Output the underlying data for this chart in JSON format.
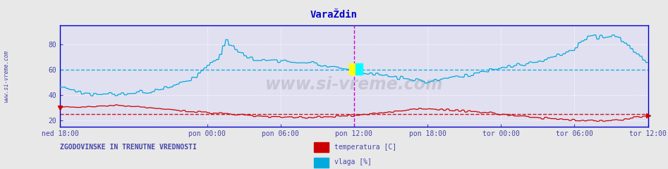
{
  "title": "VaraŽdin",
  "title_color": "#0000cc",
  "bg_color": "#e8e8e8",
  "plot_bg_color": "#e0e0f0",
  "xlabel_color": "#4444aa",
  "grid_color": "#ffffff",
  "x_ticks": [
    "ned 18:00",
    "pon 00:00",
    "pon 06:00",
    "pon 12:00",
    "pon 18:00",
    "tor 00:00",
    "tor 06:00",
    "tor 12:00"
  ],
  "x_tick_positions": [
    0.0,
    0.25,
    0.375,
    0.5,
    0.625,
    0.75,
    0.875,
    1.0
  ],
  "ylim": [
    15,
    95
  ],
  "yticks": [
    20,
    40,
    60,
    80
  ],
  "temp_color": "#cc0000",
  "hum_color": "#00aadd",
  "temp_avg": 25.0,
  "hum_avg": 60.0,
  "watermark": "www.si-vreme.com",
  "watermark_color": "#bbbbcc",
  "left_label": "www.si-vreme.com",
  "bottom_left_text": "ZGODOVINSKE IN TRENUTNE VREDNOSTI",
  "legend_temp": "temperatura [C]",
  "legend_hum": "vlaga [%]",
  "vline_color": "#cc00cc",
  "border_color": "#0000cc",
  "n_points": 576
}
